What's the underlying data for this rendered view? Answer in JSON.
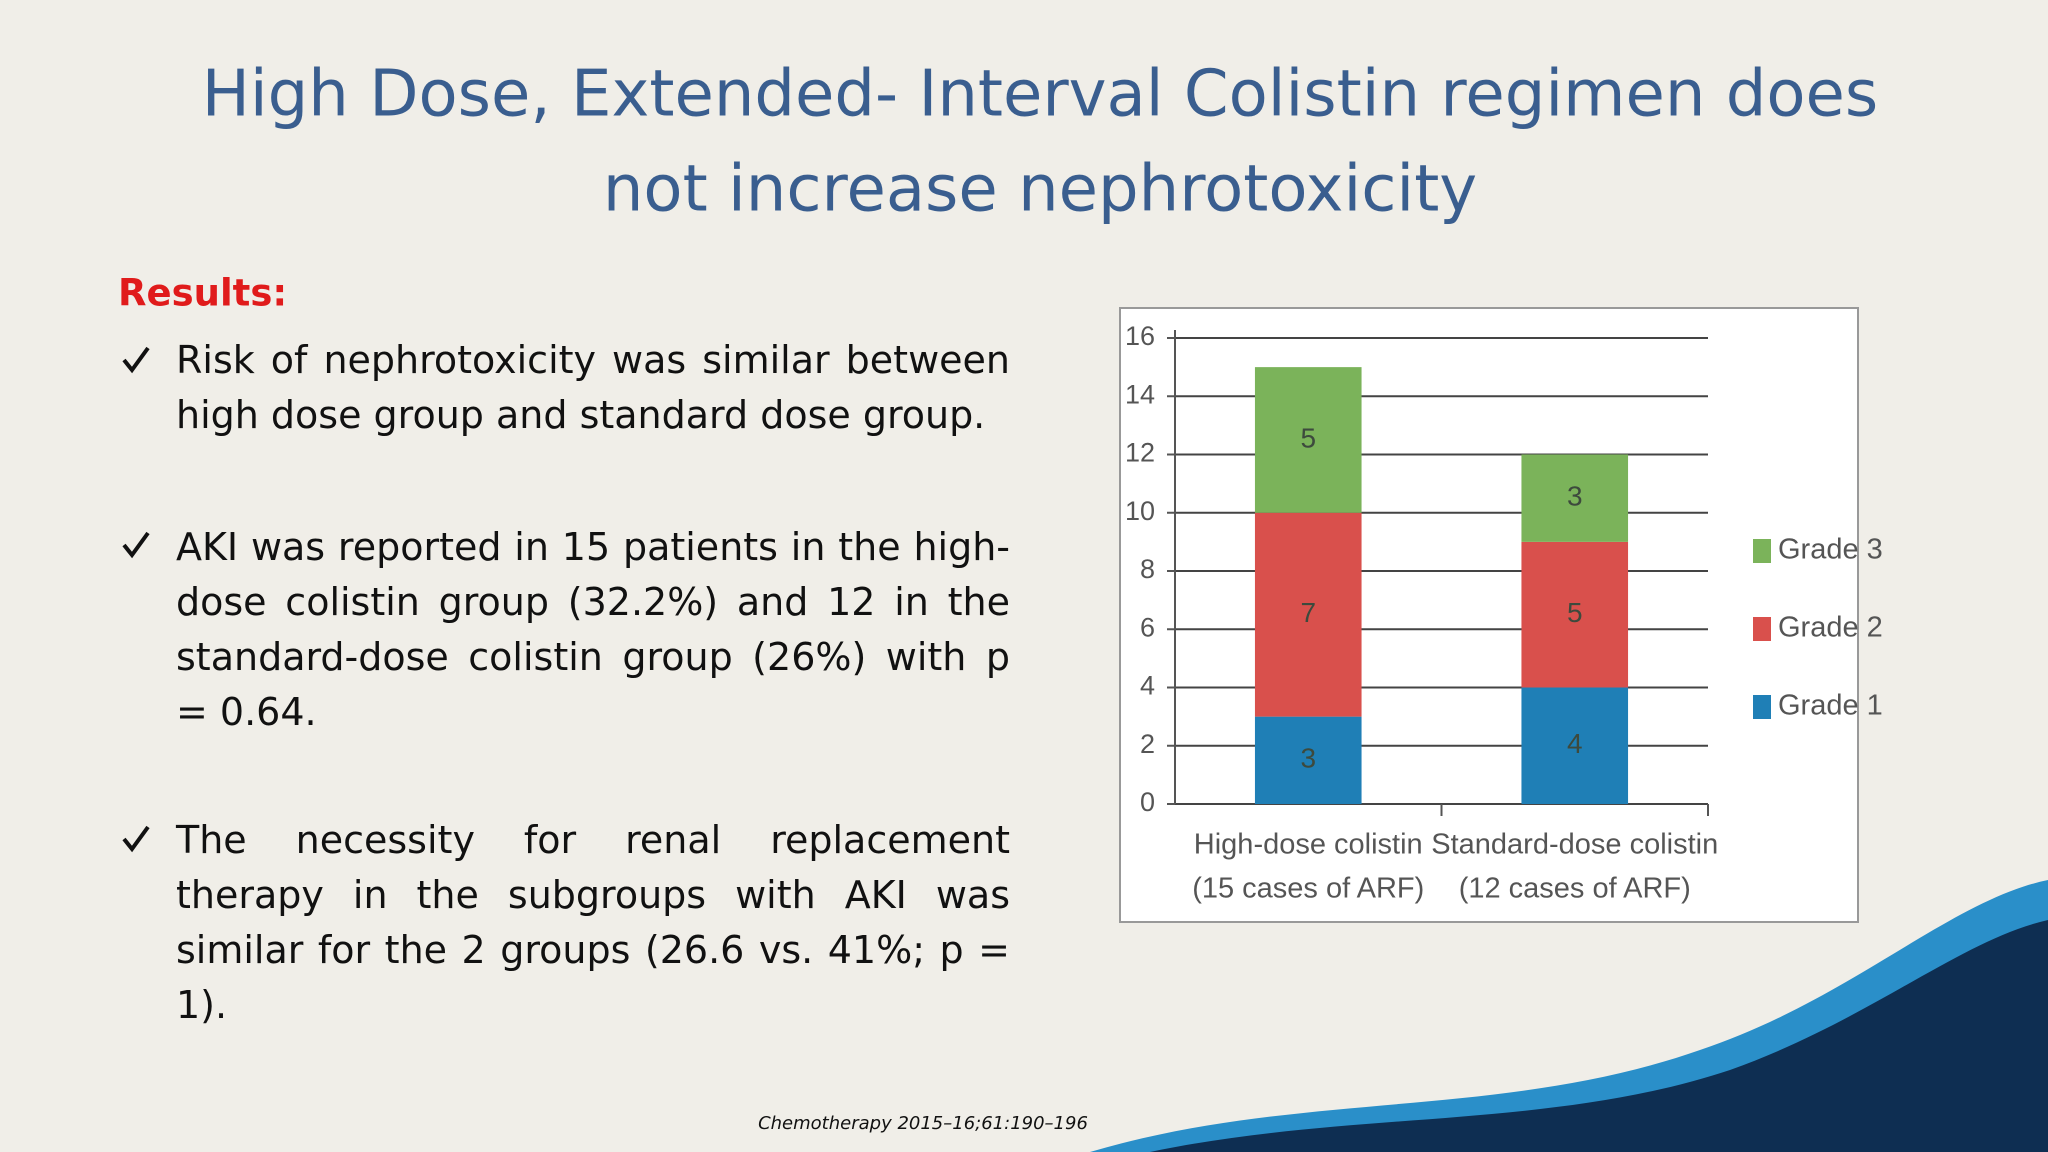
{
  "title": [
    "High Dose, Extended- Interval Colistin regimen does",
    "not increase nephrotoxicity"
  ],
  "results_label": "Results:",
  "bullets": [
    "Risk of nephrotoxicity was similar between high dose group and standard dose group.",
    "AKI was reported in 15 patients in the high-dose colistin group (32.2%) and 12 in the standard-dose colistin group (26%) with p = 0.64.",
    "The necessity for renal replacement therapy in the subgroups with AKI was similar for the 2 groups (26.6 vs. 41%; p = 1)."
  ],
  "citation": "Chemotherapy 2015–16;61:190–196",
  "chart_data": {
    "type": "stacked-bar",
    "categories": [
      [
        "High-dose colistin",
        "(15 cases of ARF)"
      ],
      [
        "Standard-dose colistin",
        "(12 cases of ARF)"
      ]
    ],
    "series": [
      {
        "name": "Grade 1",
        "color": "#1f7fb6",
        "values": [
          3,
          4
        ]
      },
      {
        "name": "Grade 2",
        "color": "#d9504c",
        "values": [
          7,
          5
        ]
      },
      {
        "name": "Grade 3",
        "color": "#7bb35a",
        "values": [
          5,
          3
        ]
      }
    ],
    "ylim": [
      0,
      16
    ],
    "yticks": [
      0,
      2,
      4,
      6,
      8,
      10,
      12,
      14,
      16
    ],
    "grid": true,
    "legend": "right"
  }
}
